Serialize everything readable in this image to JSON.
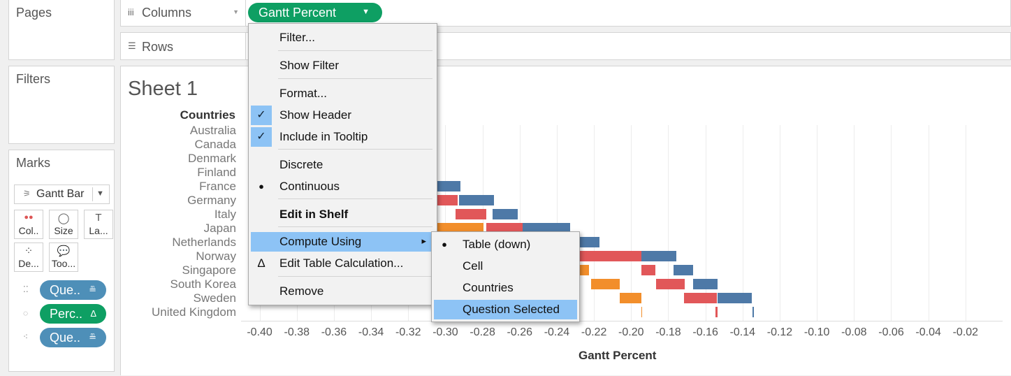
{
  "side": {
    "pages_title": "Pages",
    "filters_title": "Filters",
    "marks_title": "Marks",
    "mark_type": "Gantt Bar",
    "mark_buttons": [
      {
        "label": "Col..",
        "icon": "color-icon"
      },
      {
        "label": "Size",
        "icon": "size-icon"
      },
      {
        "label": "La...",
        "icon": "label-icon"
      },
      {
        "label": "De...",
        "icon": "detail-icon"
      },
      {
        "label": "Too...",
        "icon": "tooltip-icon"
      }
    ],
    "mark_pills": [
      {
        "label": "Que..",
        "suffix": "≞",
        "color": "#4e8fb8"
      },
      {
        "label": "Perc..",
        "suffix": "Δ",
        "color": "#0e9f63"
      },
      {
        "label": "Que..",
        "suffix": "≞",
        "color": "#4e8fb8"
      }
    ]
  },
  "shelves": {
    "columns_label": "Columns",
    "rows_label": "Rows",
    "columns_pill": "Gantt Percent"
  },
  "sheet": {
    "title": "Sheet 1",
    "row_header": "Countries",
    "countries": [
      "Australia",
      "Canada",
      "Denmark",
      "Finland",
      "France",
      "Germany",
      "Italy",
      "Japan",
      "Netherlands",
      "Norway",
      "Singapore",
      "South Korea",
      "Sweden",
      "United Kingdom"
    ],
    "axis_title": "Gantt Percent",
    "ticks": [
      "-0.40",
      "-0.38",
      "-0.36",
      "-0.34",
      "-0.32",
      "-0.30",
      "-0.28",
      "-0.26",
      "-0.24",
      "-0.22",
      "-0.20",
      "-0.18",
      "-0.16",
      "-0.14",
      "-0.12",
      "-0.10",
      "-0.08",
      "-0.06",
      "-0.04",
      "-0.02"
    ]
  },
  "context_menu": {
    "items": [
      {
        "label": "Filter..."
      },
      {
        "label": "Show Filter"
      },
      {
        "label": "Format..."
      },
      {
        "label": "Show Header",
        "checked": true
      },
      {
        "label": "Include in Tooltip",
        "checked": true
      },
      {
        "label": "Discrete"
      },
      {
        "label": "Continuous",
        "selected": true
      },
      {
        "label": "Edit in Shelf",
        "bold": true
      },
      {
        "label": "Compute Using",
        "submenu": true,
        "highlighted": true
      },
      {
        "label": "Edit Table Calculation...",
        "icon": "delta-icon"
      },
      {
        "label": "Remove"
      }
    ]
  },
  "submenu": {
    "items": [
      {
        "label": "Table (down)",
        "selected": true
      },
      {
        "label": "Cell"
      },
      {
        "label": "Countries"
      },
      {
        "label": "Question Selected",
        "highlighted": true
      }
    ]
  },
  "colors": {
    "red": "#e15759",
    "blue": "#4e79a7",
    "orange": "#f28e2b",
    "teal": "#76b7b2",
    "pill_green": "#0e9f63"
  },
  "chart_data": {
    "type": "gantt",
    "x_axis_label": "Gantt Percent",
    "xlim": [
      -0.41,
      -0.0
    ],
    "series_note": "bars partially hidden behind menu",
    "bars": [
      {
        "country": "France",
        "color": "red",
        "start": -0.3125,
        "end": -0.3065
      },
      {
        "country": "France",
        "color": "blue",
        "start": -0.3065,
        "end": -0.292
      },
      {
        "country": "Germany",
        "color": "red",
        "start": -0.3065,
        "end": -0.2935
      },
      {
        "country": "Germany",
        "color": "blue",
        "start": -0.2925,
        "end": -0.274
      },
      {
        "country": "Italy",
        "color": "orange",
        "start": -0.3125,
        "end": -0.305
      },
      {
        "country": "Italy",
        "color": "red",
        "start": -0.2945,
        "end": -0.278
      },
      {
        "country": "Italy",
        "color": "blue",
        "start": -0.2745,
        "end": -0.261
      },
      {
        "country": "Japan",
        "color": "teal",
        "start": -0.3125,
        "end": -0.3095
      },
      {
        "country": "Japan",
        "color": "orange",
        "start": -0.3045,
        "end": -0.2795
      },
      {
        "country": "Japan",
        "color": "red",
        "start": -0.278,
        "end": -0.2585
      },
      {
        "country": "Japan",
        "color": "blue",
        "start": -0.2585,
        "end": -0.233
      },
      {
        "country": "Netherlands",
        "color": "blue",
        "start": -0.2325,
        "end": -0.217
      },
      {
        "country": "Norway",
        "color": "red",
        "start": -0.2325,
        "end": -0.1945
      },
      {
        "country": "Norway",
        "color": "blue",
        "start": -0.1945,
        "end": -0.1755
      },
      {
        "country": "Singapore",
        "color": "orange",
        "start": -0.2325,
        "end": -0.2225
      },
      {
        "country": "Singapore",
        "color": "red",
        "start": -0.1945,
        "end": -0.187
      },
      {
        "country": "Singapore",
        "color": "blue",
        "start": -0.177,
        "end": -0.1665
      },
      {
        "country": "South Korea",
        "color": "orange",
        "start": -0.2215,
        "end": -0.206
      },
      {
        "country": "South Korea",
        "color": "red",
        "start": -0.1865,
        "end": -0.171
      },
      {
        "country": "South Korea",
        "color": "blue",
        "start": -0.1665,
        "end": -0.1535
      },
      {
        "country": "Sweden",
        "color": "orange",
        "start": -0.206,
        "end": -0.1945
      },
      {
        "country": "Sweden",
        "color": "red",
        "start": -0.1715,
        "end": -0.154
      },
      {
        "country": "Sweden",
        "color": "blue",
        "start": -0.1535,
        "end": -0.135
      },
      {
        "country": "United Kingdom",
        "color": "orange",
        "start": -0.1945,
        "end": -0.194
      },
      {
        "country": "United Kingdom",
        "color": "red",
        "start": -0.1545,
        "end": -0.1535
      },
      {
        "country": "United Kingdom",
        "color": "blue",
        "start": -0.1345,
        "end": -0.134
      }
    ]
  }
}
